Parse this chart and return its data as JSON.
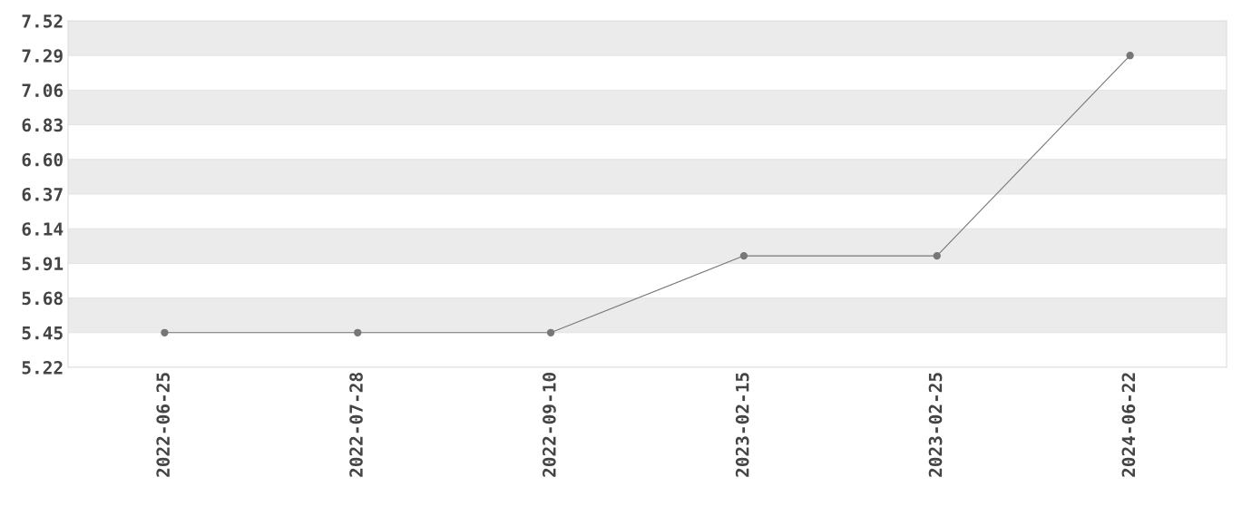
{
  "chart_data": {
    "type": "line",
    "categories": [
      "2022-06-25",
      "2022-07-28",
      "2022-09-10",
      "2023-02-15",
      "2023-02-25",
      "2024-06-22"
    ],
    "series": [
      {
        "color": "#777777",
        "values": [
          5.45,
          5.45,
          5.45,
          5.96,
          5.96,
          7.29
        ]
      }
    ],
    "ylim": [
      5.22,
      7.52
    ],
    "yticks": [
      5.22,
      5.45,
      5.68,
      5.91,
      6.14,
      6.37,
      {
        "value": 6.6,
        "label": "6.60"
      },
      6.83,
      7.06,
      7.29,
      7.52
    ],
    "grid": "y",
    "marker": "circle",
    "line_style": "solid"
  }
}
